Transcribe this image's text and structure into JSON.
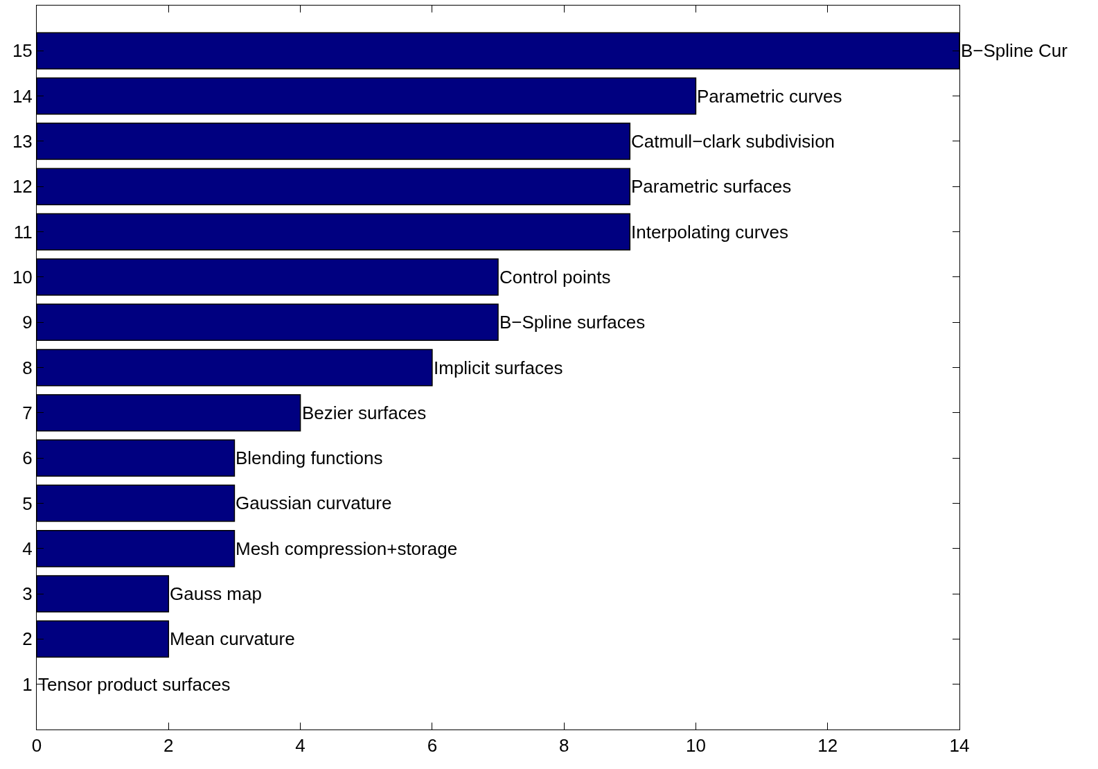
{
  "chart_data": {
    "type": "bar",
    "orientation": "horizontal",
    "categories": [
      "15",
      "14",
      "13",
      "12",
      "11",
      "10",
      "9",
      "8",
      "7",
      "6",
      "5",
      "4",
      "3",
      "2",
      "1"
    ],
    "values": [
      14,
      10,
      9,
      9,
      9,
      7,
      7,
      6,
      4,
      3,
      3,
      3,
      2,
      2,
      0
    ],
    "color": "#000080",
    "xlim": [
      0,
      14
    ],
    "xticks": [
      0,
      2,
      4,
      6,
      8,
      10,
      12,
      14
    ],
    "legend": false,
    "annotations": [
      {
        "text": "B−Spline Cur",
        "x": 14,
        "y": "15"
      },
      {
        "text": "Parametric curves",
        "x": 10,
        "y": "14"
      },
      {
        "text": "Catmull−clark subdivision",
        "x": 9,
        "y": "13"
      },
      {
        "text": "Parametric surfaces",
        "x": 9,
        "y": "12"
      },
      {
        "text": "Interpolating curves",
        "x": 9,
        "y": "11"
      },
      {
        "text": "Control points",
        "x": 7,
        "y": "10"
      },
      {
        "text": "B−Spline surfaces",
        "x": 7,
        "y": "9"
      },
      {
        "text": "Implicit surfaces",
        "x": 6,
        "y": "8"
      },
      {
        "text": "Bezier surfaces",
        "x": 4,
        "y": "7"
      },
      {
        "text": "Blending functions",
        "x": 3,
        "y": "6"
      },
      {
        "text": "Gaussian curvature",
        "x": 3,
        "y": "5"
      },
      {
        "text": "Mesh compression+storage",
        "x": 3,
        "y": "4"
      },
      {
        "text": "Gauss map",
        "x": 2,
        "y": "3"
      },
      {
        "text": "Mean curvature",
        "x": 2,
        "y": "2"
      },
      {
        "text": "Tensor product surfaces",
        "x": 0,
        "y": "1"
      }
    ]
  }
}
